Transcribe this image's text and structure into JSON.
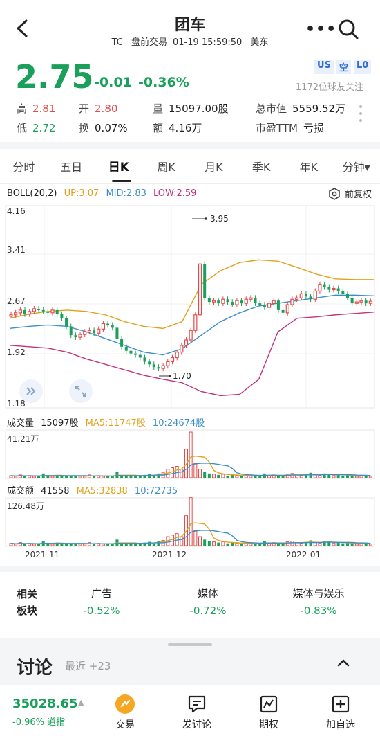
{
  "header": {
    "title": "团车",
    "ticker": "TC",
    "session": "盘前交易",
    "datetime": "01-19 15:59:50",
    "zone": "美东",
    "more": "•••"
  },
  "quote": {
    "price": "2.75",
    "change": "-0.01",
    "change_pct": "-0.36%",
    "badges": [
      "US",
      "空",
      "L0"
    ],
    "followers": "1172位球友关注",
    "stats": {
      "high_k": "高",
      "high_v": "2.81",
      "open_k": "开",
      "open_v": "2.80",
      "vol_k": "量",
      "vol_v": "15097.00股",
      "mcap_k": "总市值",
      "mcap_v": "5559.52万",
      "low_k": "低",
      "low_v": "2.72",
      "turn_k": "换",
      "turn_v": "0.07%",
      "amt_k": "额",
      "amt_v": "4.16万",
      "pe_k": "市盈TTM",
      "pe_v": "亏损"
    }
  },
  "tabs": [
    "分时",
    "五日",
    "日K",
    "周K",
    "月K",
    "季K",
    "年K",
    "分钟▾"
  ],
  "active_tab": 2,
  "chart": {
    "boll_label": "BOLL(20,2)",
    "up": "UP:3.07",
    "mid": "MID:2.83",
    "low": "LOW:2.59",
    "adjust": "前复权",
    "axis": [
      "4.16",
      "3.41",
      "2.67",
      "1.92",
      "1.18"
    ],
    "max_marker": "3.95",
    "min_marker": "1.70",
    "vol_label": "成交量",
    "vol_val": "15097股",
    "vol_ma5": "MA5:11747股",
    "vol_ma10": "10:24674股",
    "vol_axis": "41.21万",
    "amt_label": "成交额",
    "amt_val": "41558",
    "amt_ma5": "MA5:32838",
    "amt_ma10": "10:72735",
    "amt_axis": "126.48万",
    "dates": [
      "2021-11",
      "2021-12",
      "2022-01"
    ]
  },
  "sectors": {
    "head1": "相关",
    "head2": "板块",
    "items": [
      {
        "name": "广告",
        "pct": "-0.52%"
      },
      {
        "name": "媒体",
        "pct": "-0.72%"
      },
      {
        "name": "媒体与娱乐",
        "pct": "-0.83%"
      }
    ]
  },
  "discussion": {
    "title": "讨论",
    "recent": "最近 +23"
  },
  "bottom": {
    "index_value": "35028.65",
    "index_arrow": "▲",
    "index_change": "-0.96%",
    "index_name": "道指",
    "items": [
      "交易",
      "发讨论",
      "期权",
      "加自选"
    ]
  },
  "colors": {
    "down": "#1aa05a",
    "up": "#e34b4b",
    "boll_up": "#e0a21b",
    "boll_mid": "#3b8fc6",
    "boll_low": "#c2327c",
    "trade_icon": "#f5a623"
  }
}
